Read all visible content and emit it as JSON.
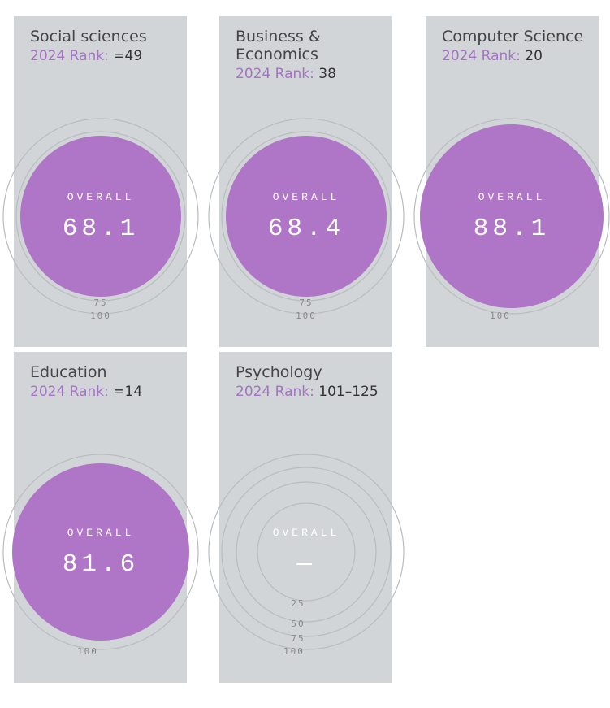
{
  "accent_color": "#af75c6",
  "scale_labels": [
    "25",
    "50",
    "75",
    "100"
  ],
  "overall_label": "OVERALL",
  "rank_label": "2024 Rank:",
  "subjects": [
    {
      "title": "Social sciences",
      "rank": "=49",
      "overall": "68.1"
    },
    {
      "title": "Business & Economics",
      "rank": "38",
      "overall": "68.4"
    },
    {
      "title": "Computer Science",
      "rank": "20",
      "overall": "88.1"
    },
    {
      "title": "Education",
      "rank": "=14",
      "overall": "81.6"
    },
    {
      "title": "Psychology",
      "rank": "101–125",
      "overall": "—"
    }
  ]
}
